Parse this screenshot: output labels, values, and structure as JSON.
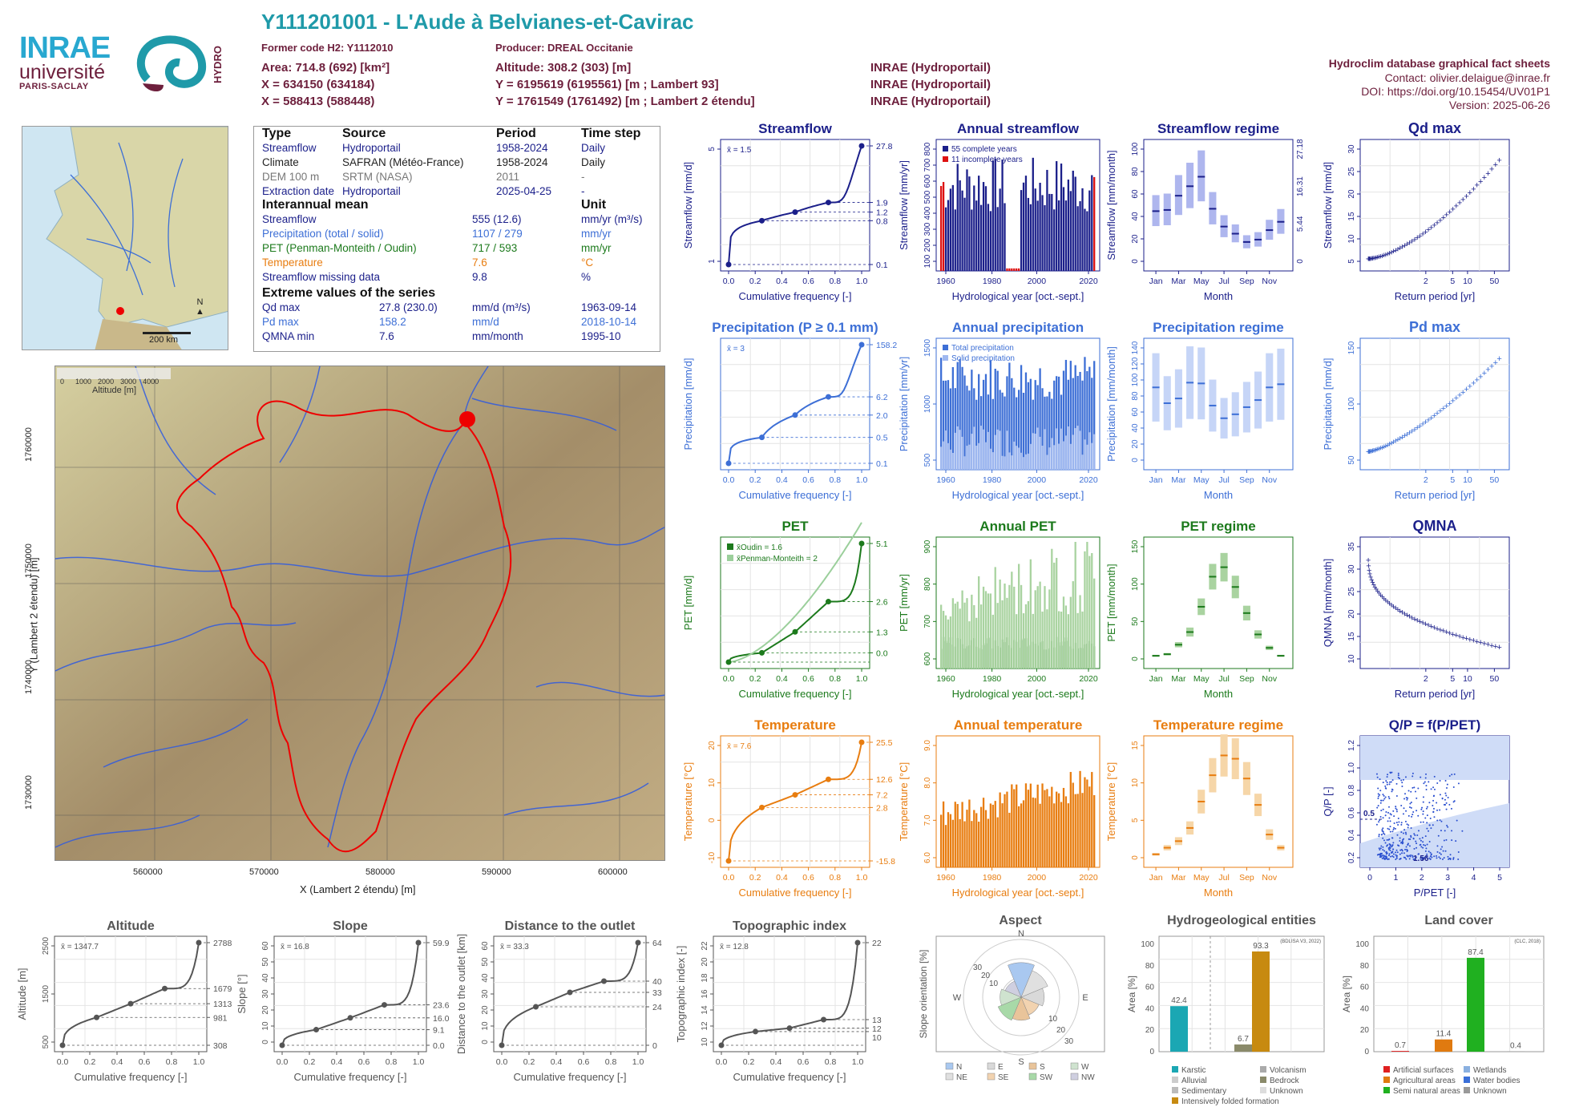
{
  "header": {
    "title": "Y111201001 - L'Aude à Belvianes-et-Cavirac",
    "former_code": "Former code H2: Y1112010",
    "producer": "Producer: DREAL Occitanie",
    "area": "Area: 714.8 (692) [km²]",
    "x_l93": "X = 634150 (634184)",
    "x_l2e": "X = 588413 (588448)",
    "altitude": "Altitude: 308.2 (303) [m]",
    "y_l93": "Y = 6195619 (6195561) [m ; Lambert 93]",
    "y_l2e": "Y = 1761549 (1761492) [m ; Lambert 2 étendu]",
    "src1": "INRAE (Hydroportail)",
    "src2": "INRAE (Hydroportail)",
    "src3": "INRAE (Hydroportail)",
    "db": "Hydroclim database graphical fact sheets",
    "contact": "Contact: olivier.delaigue@inrae.fr",
    "doi": "DOI: https://doi.org/10.15454/UV01P1",
    "version": "Version: 2025-06-26",
    "logo_inrae": "INRAE",
    "logo_univ": "université",
    "logo_ps": "PARIS-SACLAY",
    "logo_hydro": "HYDRO"
  },
  "colors": {
    "streamflow": "#1b1f8a",
    "precip": "#3d6fd6",
    "pet": "#1c7a1c",
    "temp": "#e87d10",
    "title_teal": "#1f9aa9",
    "maroon": "#6d1f3c"
  },
  "info": {
    "h_type": "Type",
    "h_source": "Source",
    "h_period": "Period",
    "h_step": "Time step",
    "rows": [
      {
        "type": "Streamflow",
        "source": "Hydroportail",
        "period": "1958-2024",
        "step": "Daily",
        "color": "#1b1f8a"
      },
      {
        "type": "Climate",
        "source": "SAFRAN (Météo-France)",
        "period": "1958-2024",
        "step": "Daily",
        "color": "#222"
      },
      {
        "type": "DEM 100 m",
        "source": "SRTM (NASA)",
        "period": "2011",
        "step": "-",
        "color": "#777"
      },
      {
        "type": "Extraction date",
        "source": "Hydroportail",
        "period": "2025-04-25",
        "step": "-",
        "color": "#1b1f8a"
      }
    ],
    "h_mean": "Interannual mean",
    "h_unit": "Unit",
    "means": [
      {
        "label": "Streamflow",
        "value": "555 (12.6)",
        "unit": "mm/yr (m³/s)",
        "color": "#1b1f8a"
      },
      {
        "label": "Precipitation (total / solid)",
        "value": "1107 / 279",
        "unit": "mm/yr",
        "color": "#3d6fd6"
      },
      {
        "label": "PET (Penman-Monteith / Oudin)",
        "value": "717 / 593",
        "unit": "mm/yr",
        "color": "#1c7a1c"
      },
      {
        "label": "Temperature",
        "value": "7.6",
        "unit": "°C",
        "color": "#e87d10"
      },
      {
        "label": "Streamflow missing data",
        "value": "9.8",
        "unit": "%",
        "color": "#1b1f8a"
      }
    ],
    "h_extreme": "Extreme values of the series",
    "extremes": [
      {
        "label": "Qd max",
        "value": "27.8 (230.0)",
        "unit": "mm/d (m³/s)",
        "date": "1963-09-14",
        "color": "#1b1f8a"
      },
      {
        "label": "Pd max",
        "value": "158.2",
        "unit": "mm/d",
        "date": "2018-10-14",
        "color": "#3d6fd6"
      },
      {
        "label": "QMNA min",
        "value": "7.6",
        "unit": "mm/month",
        "date": "1995-10",
        "color": "#1b1f8a"
      }
    ]
  },
  "minimap": {
    "scale": "200 km",
    "north": "N"
  },
  "map": {
    "legend_title": "Altitude [m]",
    "legend_ticks": [
      "0",
      "1000",
      "2000",
      "3000",
      "4000"
    ],
    "ylabel": "Y (Lambert 2 étendu) [m]",
    "xlabel": "X (Lambert 2 étendu) [m]",
    "xticks": [
      "560000",
      "570000",
      "580000",
      "590000",
      "600000"
    ],
    "yticks": [
      "1760000",
      "1750000",
      "1740000",
      "1730000"
    ]
  },
  "chart_data": [
    {
      "id": "streamflow",
      "type": "line",
      "title": "Streamflow",
      "ylabel": "Streamflow [mm/d]",
      "xlabel": "Cumulative frequency [-]",
      "annotation": "x̄ = 1.5",
      "right_labels": [
        "27.8",
        "1.9",
        "1.2",
        "0.8",
        "0.1"
      ],
      "x": [
        0,
        0.25,
        0.5,
        0.75,
        1
      ],
      "y": [
        0.1,
        0.8,
        1.2,
        1.9,
        27.8
      ],
      "yticks": [
        "1",
        "5"
      ]
    },
    {
      "id": "annual_streamflow",
      "type": "bar",
      "title": "Annual streamflow",
      "ylabel": "Streamflow [mm/yr]",
      "xlabel": "Hydrological year [oct.-sept.]",
      "legend": [
        "55 complete years",
        "11 incomplete years"
      ],
      "yticks": [
        "100",
        "200",
        "300",
        "400",
        "500",
        "600",
        "700",
        "800"
      ],
      "xticks": [
        "1960",
        "1980",
        "2000",
        "2020"
      ]
    },
    {
      "id": "streamflow_regime",
      "type": "box",
      "title": "Streamflow regime",
      "ylabel": "Streamflow [mm/month]",
      "xlabel": "Month",
      "categories": [
        "Jan",
        "Feb",
        "Mar",
        "Apr",
        "May",
        "Jun",
        "Jul",
        "Aug",
        "Sep",
        "Oct",
        "Nov",
        "Dec"
      ],
      "values": [
        45,
        46,
        58,
        66,
        74,
        47,
        32,
        26,
        19,
        21,
        29,
        36
      ],
      "right_labels": [
        "27.18",
        "16.31",
        "5.44",
        "0"
      ],
      "yticks": [
        "0",
        "20",
        "40",
        "60",
        "80",
        "100"
      ]
    },
    {
      "id": "qd_max",
      "type": "scatter",
      "title": "Qd max",
      "ylabel": "Streamflow [mm/d]",
      "xlabel": "Return period [yr]",
      "yticks": [
        "5",
        "10",
        "15",
        "20",
        "25",
        "30"
      ],
      "xticks": [
        "2",
        "5",
        "10",
        "50"
      ]
    },
    {
      "id": "precipitation",
      "type": "line",
      "title": "Precipitation (P ≥ 0.1 mm)",
      "ylabel": "Precipitation [mm/d]",
      "xlabel": "Cumulative frequency [-]",
      "annotation": "x̄ = 3",
      "right_labels": [
        "158.2",
        "6.2",
        "2.0",
        "0.5",
        "0.1"
      ],
      "x": [
        0,
        0.25,
        0.5,
        0.75,
        1
      ],
      "y": [
        0.1,
        0.5,
        2.0,
        6.2,
        158.2
      ]
    },
    {
      "id": "annual_precipitation",
      "type": "bar",
      "title": "Annual precipitation",
      "ylabel": "Precipitation [mm/yr]",
      "xlabel": "Hydrological year [oct.-sept.]",
      "legend": [
        "Total precipitation",
        "Solid precipitation"
      ],
      "yticks": [
        "500",
        "1000",
        "1500"
      ],
      "xticks": [
        "1960",
        "1980",
        "2000",
        "2020"
      ]
    },
    {
      "id": "precipitation_regime",
      "type": "box",
      "title": "Precipitation regime",
      "ylabel": "Precipitation [mm/month]",
      "xlabel": "Month",
      "categories": [
        "Jan",
        "Feb",
        "Mar",
        "Apr",
        "May",
        "Jun",
        "Jul",
        "Aug",
        "Sep",
        "Oct",
        "Nov",
        "Dec"
      ],
      "values": [
        96,
        76,
        82,
        102,
        101,
        73,
        57,
        62,
        71,
        80,
        96,
        100
      ],
      "yticks": [
        "0",
        "20",
        "40",
        "60",
        "80",
        "100",
        "120",
        "140"
      ]
    },
    {
      "id": "pd_max",
      "type": "scatter",
      "title": "Pd max",
      "ylabel": "Precipitation [mm/d]",
      "xlabel": "Return period [yr]",
      "yticks": [
        "50",
        "100",
        "150"
      ],
      "xticks": [
        "2",
        "5",
        "10",
        "50"
      ]
    },
    {
      "id": "pet",
      "type": "line",
      "title": "PET",
      "ylabel": "PET [mm/d]",
      "xlabel": "Cumulative frequency [-]",
      "legend": [
        "x̄Oudin = 1.6",
        "x̄Penman-Monteith = 2"
      ],
      "right_labels": [
        "5.1",
        "2.6",
        "1.3",
        "0.0"
      ],
      "x": [
        0,
        0.25,
        0.5,
        0.75,
        1
      ],
      "y": [
        0,
        0.4,
        1.3,
        2.6,
        5.1
      ]
    },
    {
      "id": "annual_pet",
      "type": "bar",
      "title": "Annual PET",
      "ylabel": "PET [mm/yr]",
      "xlabel": "Hydrological year [oct.-sept.]",
      "yticks": [
        "600",
        "700",
        "800",
        "900"
      ],
      "xticks": [
        "1960",
        "1980",
        "2000",
        "2020"
      ]
    },
    {
      "id": "pet_regime",
      "type": "box",
      "title": "PET regime",
      "ylabel": "PET [mm/month]",
      "xlabel": "Month",
      "categories": [
        "Jan",
        "Feb",
        "Mar",
        "Apr",
        "May",
        "Jun",
        "Jul",
        "Aug",
        "Sep",
        "Oct",
        "Nov",
        "Dec"
      ],
      "values": [
        8,
        10,
        22,
        38,
        70,
        108,
        120,
        95,
        62,
        35,
        18,
        8
      ],
      "yticks": [
        "0",
        "50",
        "100",
        "150"
      ]
    },
    {
      "id": "qmna",
      "type": "scatter",
      "title": "QMNA",
      "ylabel": "QMNA [mm/month]",
      "xlabel": "Return period [yr]",
      "yticks": [
        "10",
        "15",
        "20",
        "25",
        "30",
        "35"
      ],
      "xticks": [
        "2",
        "5",
        "10",
        "50"
      ]
    },
    {
      "id": "temperature",
      "type": "line",
      "title": "Temperature",
      "ylabel": "Temperature [°C]",
      "xlabel": "Cumulative frequency [-]",
      "annotation": "x̄ = 7.6",
      "right_labels": [
        "25.5",
        "12.6",
        "7.2",
        "2.8",
        "-15.8"
      ],
      "x": [
        0,
        0.25,
        0.5,
        0.75,
        1
      ],
      "y": [
        -15.8,
        2.8,
        7.2,
        12.6,
        25.5
      ],
      "yticks": [
        "-10",
        "0",
        "10",
        "20"
      ]
    },
    {
      "id": "annual_temperature",
      "type": "bar",
      "title": "Annual temperature",
      "ylabel": "Temperature [°C]",
      "xlabel": "Hydrological year [oct.-sept.]",
      "yticks": [
        "6.0",
        "7.0",
        "8.0",
        "9.0"
      ],
      "xticks": [
        "1960",
        "1980",
        "2000",
        "2020"
      ]
    },
    {
      "id": "temperature_regime",
      "type": "box",
      "title": "Temperature regime",
      "ylabel": "Temperature [°C]",
      "xlabel": "Month",
      "categories": [
        "Jan",
        "Feb",
        "Mar",
        "Apr",
        "May",
        "Jun",
        "Jul",
        "Aug",
        "Sep",
        "Oct",
        "Nov",
        "Dec"
      ],
      "values": [
        1,
        2,
        3,
        5,
        9,
        13,
        16,
        15.5,
        12.5,
        8.5,
        4,
        2
      ],
      "yticks": [
        "0",
        "5",
        "10",
        "15"
      ]
    },
    {
      "id": "qp",
      "type": "scatter",
      "title": "Q/P = f(P/PET)",
      "ylabel": "Q/P [-]",
      "xlabel": "P/PET [-]",
      "annotations": [
        "0.5",
        "1.56"
      ],
      "yticks": [
        "0.2",
        "0.4",
        "0.6",
        "0.8",
        "1.0",
        "1.2"
      ],
      "xticks": [
        "0",
        "1",
        "2",
        "3",
        "4",
        "5"
      ]
    },
    {
      "id": "altitude",
      "type": "line",
      "title": "Altitude",
      "ylabel": "Altitude [m]",
      "xlabel": "Cumulative frequency [-]",
      "annotation": "x̄ = 1347.7",
      "right_labels": [
        "2788",
        "1679",
        "1313",
        "981",
        "308"
      ],
      "x": [
        0,
        0.25,
        0.5,
        0.75,
        1
      ],
      "y": [
        308,
        981,
        1313,
        1679,
        2788
      ],
      "yticks": [
        "500",
        "1500",
        "2500"
      ]
    },
    {
      "id": "slope",
      "type": "line",
      "title": "Slope",
      "ylabel": "Slope [°]",
      "xlabel": "Cumulative frequency [-]",
      "annotation": "x̄ = 16.8",
      "right_labels": [
        "59.9",
        "23.6",
        "16.0",
        "9.1",
        "0.0"
      ],
      "x": [
        0,
        0.25,
        0.5,
        0.75,
        1
      ],
      "y": [
        0,
        9.1,
        16.0,
        23.6,
        59.9
      ],
      "yticks": [
        "0",
        "10",
        "20",
        "30",
        "40",
        "50",
        "60"
      ]
    },
    {
      "id": "distance",
      "type": "line",
      "title": "Distance to the outlet",
      "ylabel": "Distance to the outlet [km]",
      "xlabel": "Cumulative frequency [-]",
      "annotation": "x̄ = 33.3",
      "right_labels": [
        "64",
        "40",
        "33",
        "24",
        "0"
      ],
      "x": [
        0,
        0.25,
        0.5,
        0.75,
        1
      ],
      "y": [
        0,
        24,
        33,
        40,
        64
      ],
      "yticks": [
        "0",
        "10",
        "20",
        "30",
        "40",
        "50",
        "60"
      ]
    },
    {
      "id": "topo",
      "type": "line",
      "title": "Topographic index",
      "ylabel": "Topographic index [-]",
      "xlabel": "Cumulative frequency [-]",
      "annotation": "x̄ = 12.8",
      "right_labels": [
        "22",
        "13",
        "12",
        "10"
      ],
      "x": [
        0,
        0.25,
        0.5,
        0.75,
        1
      ],
      "y": [
        10,
        11.6,
        12,
        13,
        22
      ],
      "yticks": [
        "10",
        "12",
        "14",
        "16",
        "18",
        "20",
        "22"
      ]
    },
    {
      "id": "aspect",
      "type": "pie",
      "title": "Aspect",
      "ylabel": "Slope orientation [%]",
      "labels": [
        "N",
        "NE",
        "E",
        "SE",
        "S",
        "SW",
        "W",
        "NW"
      ],
      "values": [
        18,
        15,
        12,
        10,
        12,
        13,
        11,
        9
      ],
      "rings": [
        "10",
        "20",
        "30"
      ],
      "compass": [
        "N",
        "E",
        "S",
        "W"
      ],
      "legend": [
        "N",
        "NE",
        "E",
        "SE",
        "S",
        "SW",
        "W",
        "NW"
      ]
    },
    {
      "id": "hydrogeology",
      "type": "bar",
      "title": "Hydrogeological entities",
      "ylabel": "Area [%]",
      "note": "(BDLISA V3, 2022)",
      "categories": [
        "Karstic",
        "Volcanism",
        "Alluvial",
        "Bedrock",
        "Sedimentary",
        "Unknown",
        "Intensively folded formation"
      ],
      "values": [
        42.4,
        0,
        0,
        6.7,
        0,
        0,
        93.3
      ],
      "yticks": [
        "0",
        "20",
        "40",
        "60",
        "80",
        "100"
      ]
    },
    {
      "id": "landcover",
      "type": "bar",
      "title": "Land cover",
      "ylabel": "Area [%]",
      "note": "(CLC, 2018)",
      "categories": [
        "Artificial surfaces",
        "Wetlands",
        "Agricultural areas",
        "Water bodies",
        "Semi natural areas",
        "Unknown"
      ],
      "values": [
        0.7,
        0,
        11.4,
        0,
        87.4,
        0.4
      ],
      "yticks": [
        "0",
        "20",
        "40",
        "60",
        "80",
        "100"
      ]
    }
  ]
}
